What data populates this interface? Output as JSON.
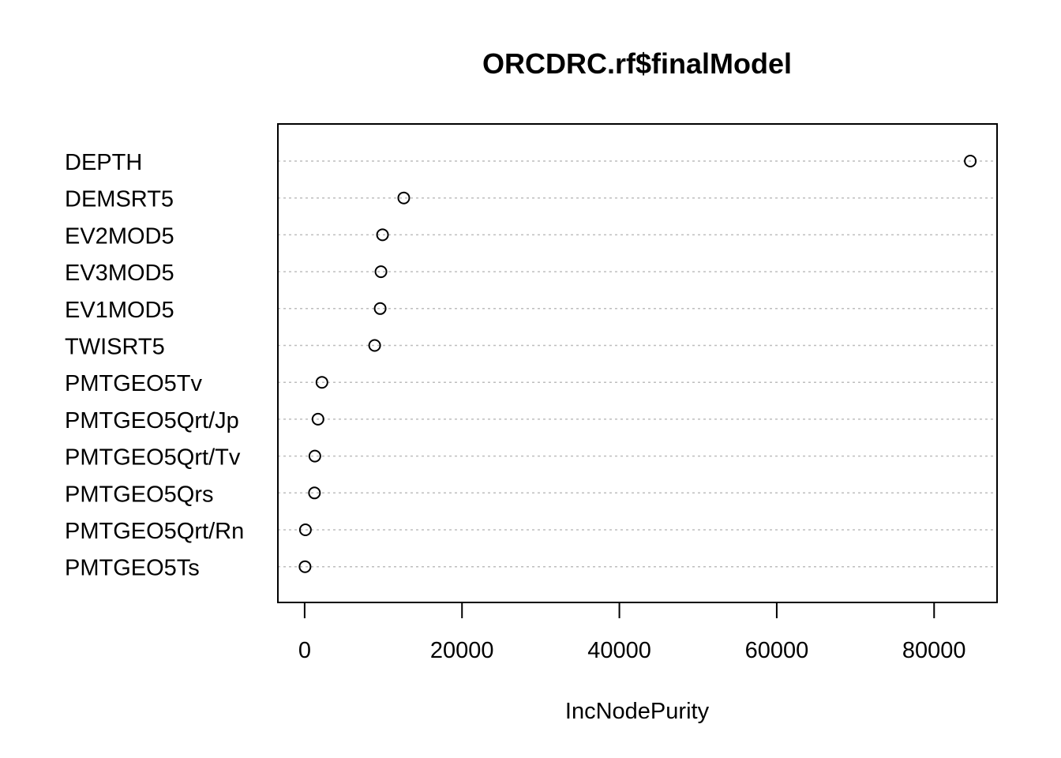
{
  "chart_data": {
    "type": "scatter",
    "title": "ORCDRC.rf$finalModel",
    "xlabel": "IncNodePurity",
    "ylabel": "",
    "xlim": [
      -3400,
      88000
    ],
    "xticks": [
      0,
      20000,
      40000,
      60000,
      80000
    ],
    "grid": "horizontal-dotted",
    "legend": "none",
    "marker": "open-circle",
    "colors": {
      "background": "#ffffff",
      "axis": "#000000",
      "grid": "#bebebe",
      "marker": "#000000"
    },
    "categories": [
      "DEPTH",
      "DEMSRT5",
      "EV2MOD5",
      "EV3MOD5",
      "EV1MOD5",
      "TWISRT5",
      "PMTGEO5Tv",
      "PMTGEO5Qrt/Jp",
      "PMTGEO5Qrt/Tv",
      "PMTGEO5Qrs",
      "PMTGEO5Qrt/Rn",
      "PMTGEO5Ts"
    ],
    "values": [
      84600,
      12600,
      9900,
      9700,
      9600,
      8900,
      2200,
      1700,
      1300,
      1250,
      100,
      50
    ]
  }
}
